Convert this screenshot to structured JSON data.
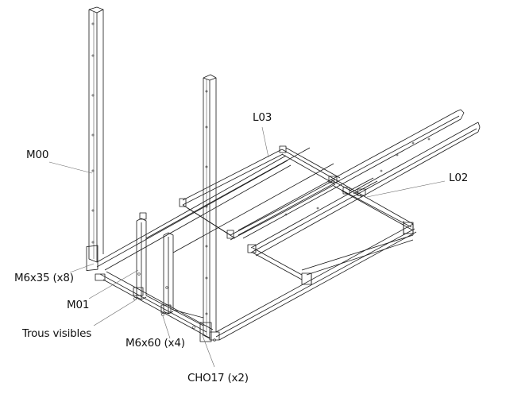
{
  "labels": {
    "m00": "M00",
    "l03": "L03",
    "l02": "L02",
    "m6x35": "M6x35 (x8)",
    "m01": "M01",
    "trous": "Trous visibles",
    "m6x60": "M6x60 (x4)",
    "cho17": "CHO17 (x2)"
  },
  "colors": {
    "line": "#1a1a1a",
    "leader": "#6a6a6a",
    "background": "#ffffff"
  }
}
